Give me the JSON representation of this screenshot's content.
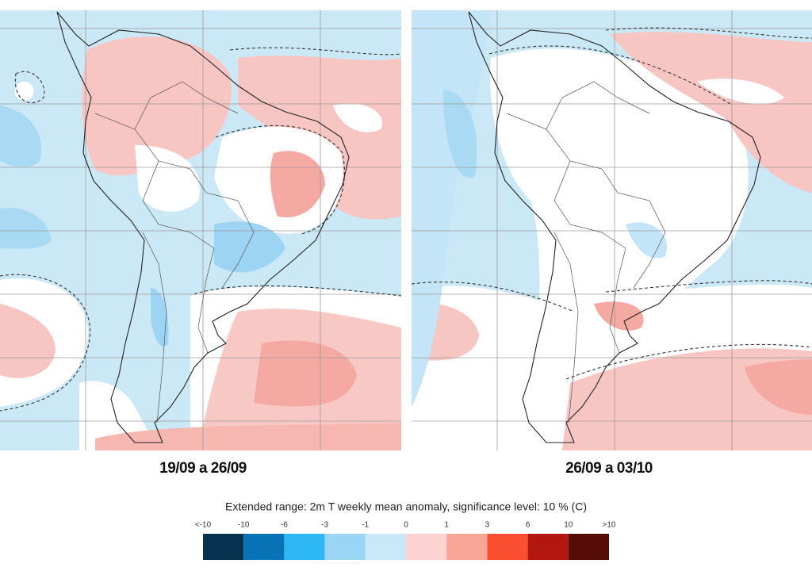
{
  "panels": [
    {
      "label": "19/09 a 26/09"
    },
    {
      "label": "26/09 a 03/10"
    }
  ],
  "legend": {
    "title": "Extended range: 2m T weekly mean anomaly, significance level: 10 % (C)",
    "ticks": [
      "<-10",
      "-10",
      "-6",
      "-3",
      "-1",
      "0",
      "1",
      "3",
      "6",
      "10",
      ">10"
    ],
    "colors": [
      "#05324f",
      "#0773b4",
      "#2db8f5",
      "#9ad5f6",
      "#c9e9f8",
      "#fcd3d1",
      "#f9a597",
      "#fc4f32",
      "#b1160f",
      "#560c06"
    ]
  }
}
